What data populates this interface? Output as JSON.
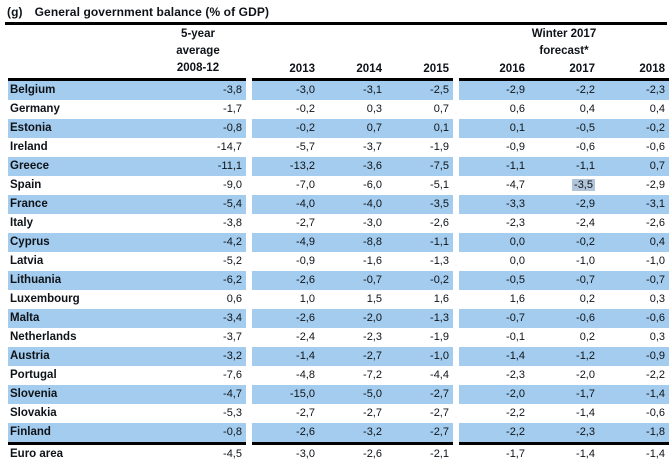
{
  "title": {
    "index": "(g)",
    "text": "General government balance (% of GDP)"
  },
  "table": {
    "avg_header": [
      "5-year",
      "average",
      "2008-12"
    ],
    "forecast_header": [
      "Winter 2017",
      "forecast*"
    ],
    "year_headers": [
      "2013",
      "2014",
      "2015",
      "2016",
      "2017",
      "2018"
    ],
    "rows": [
      {
        "country": "Belgium",
        "values": [
          "-3,8",
          "-3,0",
          "-3,1",
          "-2,5",
          "-2,9",
          "-2,2",
          "-2,3"
        ]
      },
      {
        "country": "Germany",
        "values": [
          "-1,7",
          "-0,2",
          "0,3",
          "0,7",
          "0,6",
          "0,4",
          "0,4"
        ]
      },
      {
        "country": "Estonia",
        "values": [
          "-0,8",
          "-0,2",
          "0,7",
          "0,1",
          "0,1",
          "-0,5",
          "-0,2"
        ]
      },
      {
        "country": "Ireland",
        "values": [
          "-14,7",
          "-5,7",
          "-3,7",
          "-1,9",
          "-0,9",
          "-0,6",
          "-0,6"
        ]
      },
      {
        "country": "Greece",
        "values": [
          "-11,1",
          "-13,2",
          "-3,6",
          "-7,5",
          "-1,1",
          "-1,1",
          "0,7"
        ]
      },
      {
        "country": "Spain",
        "values": [
          "-9,0",
          "-7,0",
          "-6,0",
          "-5,1",
          "-4,7",
          "-3,5",
          "-2,9"
        ]
      },
      {
        "country": "France",
        "values": [
          "-5,4",
          "-4,0",
          "-4,0",
          "-3,5",
          "-3,3",
          "-2,9",
          "-3,1"
        ]
      },
      {
        "country": "Italy",
        "values": [
          "-3,8",
          "-2,7",
          "-3,0",
          "-2,6",
          "-2,3",
          "-2,4",
          "-2,6"
        ]
      },
      {
        "country": "Cyprus",
        "values": [
          "-4,2",
          "-4,9",
          "-8,8",
          "-1,1",
          "0,0",
          "-0,2",
          "0,4"
        ]
      },
      {
        "country": "Latvia",
        "values": [
          "-5,2",
          "-0,9",
          "-1,6",
          "-1,3",
          "0,0",
          "-1,0",
          "-1,0"
        ]
      },
      {
        "country": "Lithuania",
        "values": [
          "-6,2",
          "-2,6",
          "-0,7",
          "-0,2",
          "-0,5",
          "-0,7",
          "-0,7"
        ]
      },
      {
        "country": "Luxembourg",
        "values": [
          "0,6",
          "1,0",
          "1,5",
          "1,6",
          "1,6",
          "0,2",
          "0,3"
        ]
      },
      {
        "country": "Malta",
        "values": [
          "-3,4",
          "-2,6",
          "-2,0",
          "-1,3",
          "-0,7",
          "-0,6",
          "-0,6"
        ]
      },
      {
        "country": "Netherlands",
        "values": [
          "-3,7",
          "-2,4",
          "-2,3",
          "-1,9",
          "-0,1",
          "0,2",
          "0,3"
        ]
      },
      {
        "country": "Austria",
        "values": [
          "-3,2",
          "-1,4",
          "-2,7",
          "-1,0",
          "-1,4",
          "-1,2",
          "-0,9"
        ]
      },
      {
        "country": "Portugal",
        "values": [
          "-7,6",
          "-4,8",
          "-7,2",
          "-4,4",
          "-2,3",
          "-2,0",
          "-2,2"
        ]
      },
      {
        "country": "Slovenia",
        "values": [
          "-4,7",
          "-15,0",
          "-5,0",
          "-2,7",
          "-2,0",
          "-1,7",
          "-1,4"
        ]
      },
      {
        "country": "Slovakia",
        "values": [
          "-5,3",
          "-2,7",
          "-2,7",
          "-2,7",
          "-2,2",
          "-1,4",
          "-0,6"
        ]
      },
      {
        "country": "Finland",
        "values": [
          "-0,8",
          "-2,6",
          "-3,2",
          "-2,7",
          "-2,2",
          "-2,3",
          "-1,8"
        ]
      },
      {
        "country": "Euro area",
        "values": [
          "-4,5",
          "-3,0",
          "-2,6",
          "-2,1",
          "-1,7",
          "-1,4",
          "-1,4"
        ]
      }
    ],
    "highlight": {
      "row_index": 5,
      "value_index": 5
    }
  },
  "colors": {
    "row_blue": "#a3ccee",
    "selection_highlight": "#b0c5da",
    "rule": "#000000"
  }
}
